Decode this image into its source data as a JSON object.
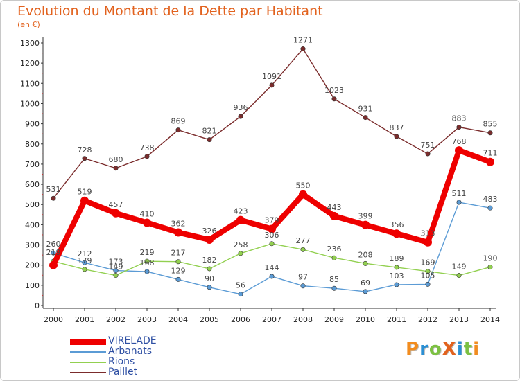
{
  "header": {
    "title": "Evolution du Montant de la Dette par Habitant",
    "subtitle": "(en €)"
  },
  "logo": {
    "text": "ProXiti",
    "colors": [
      "#f28c1e",
      "#2b8fd3",
      "#7cc142",
      "#e2621e",
      "#2b8fd3",
      "#7cc142",
      "#f28c1e"
    ]
  },
  "chart_data": {
    "type": "line",
    "title": "Evolution du Montant de la Dette par Habitant",
    "subtitle": "(en €)",
    "x": [
      "2000",
      "2001",
      "2002",
      "2003",
      "2004",
      "2005",
      "2006",
      "2007",
      "2008",
      "2009",
      "2010",
      "2011",
      "2012",
      "2013",
      "2014"
    ],
    "ylim": [
      0,
      1300
    ],
    "yticks": [
      0,
      100,
      200,
      300,
      400,
      500,
      600,
      700,
      800,
      900,
      1000,
      1100,
      1200,
      1300
    ],
    "grid": false,
    "legend_position": "bottom-left",
    "series": [
      {
        "name": "VIRELADE",
        "color": "#ee0000",
        "emphasis": true,
        "values": [
          200,
          519,
          457,
          410,
          362,
          326,
          423,
          379,
          550,
          443,
          399,
          356,
          313,
          768,
          711
        ]
      },
      {
        "name": "Arbanats",
        "color": "#5b9bd5",
        "values": [
          260,
          212,
          173,
          168,
          129,
          90,
          56,
          144,
          97,
          85,
          69,
          103,
          105,
          511,
          483
        ]
      },
      {
        "name": "Rions",
        "color": "#92d050",
        "values": [
          219,
          179,
          149,
          219,
          217,
          182,
          258,
          306,
          277,
          236,
          208,
          189,
          169,
          149,
          190
        ]
      },
      {
        "name": "Paillet",
        "color": "#7b2c2c",
        "values": [
          531,
          728,
          680,
          738,
          869,
          821,
          936,
          1091,
          1271,
          1023,
          931,
          837,
          751,
          883,
          855
        ]
      }
    ],
    "data_labels": {
      "VIRELADE": [
        "",
        "519",
        "457",
        "410",
        "362",
        "326",
        "423",
        "379",
        "550",
        "443",
        "399",
        "356",
        "313",
        "768",
        "711"
      ],
      "Arbanats": [
        "260",
        "212",
        "173",
        "168",
        "129",
        "90",
        "56",
        "144",
        "97",
        "85",
        "69",
        "103",
        "105",
        "511",
        "483"
      ],
      "Rions": [
        "219",
        "179",
        "149",
        "219",
        "217",
        "182",
        "258",
        "306",
        "277",
        "236",
        "208",
        "189",
        "169",
        "149",
        "190"
      ],
      "Paillet": [
        "531",
        "728",
        "680",
        "738",
        "869",
        "821",
        "936",
        "1091",
        "1271",
        "1023",
        "931",
        "837",
        "751",
        "883",
        "855"
      ]
    }
  }
}
